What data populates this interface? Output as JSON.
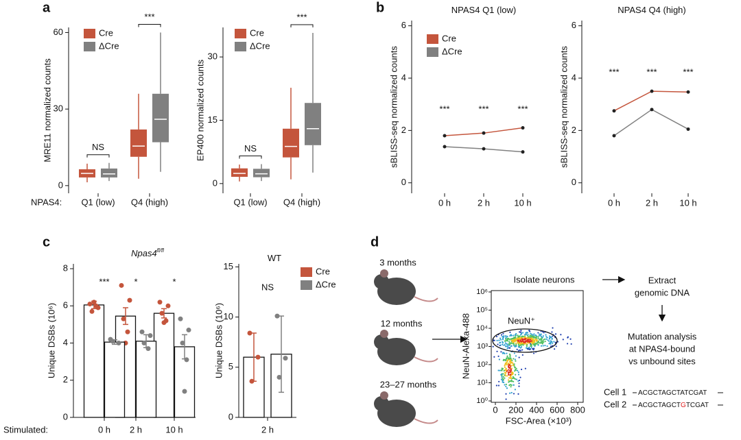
{
  "chart_data": [
    {
      "panel": "a",
      "type": "box",
      "ylabel": "MRE11 normalized counts",
      "group_label": "NPAS4:",
      "categories": [
        "Q1 (low)",
        "Q4 (high)"
      ],
      "series": [
        {
          "name": "Cre",
          "color": "#c4553c",
          "boxes": [
            {
              "low": 1.3,
              "q1": 3.2,
              "median": 4.8,
              "q3": 6.4,
              "high": 8.6
            },
            {
              "low": 2.7,
              "q1": 11.3,
              "median": 15.5,
              "q3": 22,
              "high": 36
            }
          ]
        },
        {
          "name": "ΔCre",
          "color": "#808080",
          "boxes": [
            {
              "low": 1.8,
              "q1": 3.2,
              "median": 4.6,
              "q3": 6.7,
              "high": 8.9
            },
            {
              "low": 5.4,
              "q1": 17,
              "median": 26,
              "q3": 36,
              "high": 60
            }
          ]
        }
      ],
      "annotations": [
        "NS",
        "***"
      ],
      "ylim": [
        -3,
        62
      ],
      "yticks": [
        0,
        30,
        60
      ]
    },
    {
      "type": "box",
      "ylabel": "EP400 normalized counts",
      "categories": [
        "Q1 (low)",
        "Q4 (high)"
      ],
      "series": [
        {
          "name": "Cre",
          "color": "#c4553c",
          "boxes": [
            {
              "low": 0.5,
              "q1": 1.6,
              "median": 2.4,
              "q3": 3.6,
              "high": 4.5
            },
            {
              "low": 1,
              "q1": 6.2,
              "median": 8.8,
              "q3": 13,
              "high": 22.7
            }
          ]
        },
        {
          "name": "ΔCre",
          "color": "#808080",
          "boxes": [
            {
              "low": 0.6,
              "q1": 1.5,
              "median": 2.3,
              "q3": 3.5,
              "high": 4.6
            },
            {
              "low": 2.6,
              "q1": 9.1,
              "median": 13,
              "q3": 19.1,
              "high": 35.7
            }
          ]
        }
      ],
      "annotations": [
        "NS",
        "***"
      ],
      "ylim": [
        -2.3,
        37
      ],
      "yticks": [
        0,
        15,
        30
      ]
    },
    {
      "panel": "b",
      "type": "line",
      "title": "NPAS4 Q1 (low)",
      "ylabel": "sBLISS-seq normalized counts",
      "categories": [
        "0 h",
        "2 h",
        "10 h"
      ],
      "series": [
        {
          "name": "Cre",
          "color": "#c4553c",
          "values": [
            1.8,
            1.9,
            2.1
          ]
        },
        {
          "name": "ΔCre",
          "color": "#808080",
          "values": [
            1.38,
            1.3,
            1.18
          ]
        }
      ],
      "annotations": [
        "***",
        "***",
        "***"
      ],
      "ylim": [
        -0.4,
        6.2
      ],
      "yticks": [
        0,
        2,
        4,
        6
      ]
    },
    {
      "type": "line",
      "title": "NPAS4 Q4 (high)",
      "ylabel": "sBLISS-seq normalized counts",
      "categories": [
        "0 h",
        "2 h",
        "10 h"
      ],
      "series": [
        {
          "color": "#c4553c",
          "values": [
            2.75,
            3.5,
            3.47
          ]
        },
        {
          "color": "#808080",
          "values": [
            1.8,
            2.8,
            2.05
          ]
        }
      ],
      "annotations": [
        "***",
        "***",
        "***"
      ],
      "ylim": [
        -0.4,
        6.2
      ],
      "yticks": [
        0,
        2,
        4,
        6
      ]
    },
    {
      "panel": "c",
      "type": "bar",
      "title": "Npas4",
      "title_sup": "fl/fl",
      "ylabel": "Unique DSBs (10⁶)",
      "group_label": "Stimulated:",
      "categories": [
        "0 h",
        "2 h",
        "10 h"
      ],
      "series": [
        {
          "color": "#c4553c",
          "values": [
            6.05,
            5.45,
            5.6
          ],
          "errors": [
            0.2,
            0.45,
            0.25
          ],
          "points": [
            [
              6.1,
              5.9,
              5.7,
              6.0,
              6.2
            ],
            [
              7.1,
              6.3,
              5.3,
              4.6,
              4.0
            ],
            [
              6.2,
              6.0,
              5.6,
              5.2,
              5.1
            ]
          ]
        },
        {
          "color": "#808080",
          "values": [
            4.05,
            4.1,
            3.8
          ],
          "errors": [
            0.12,
            0.35,
            0.65
          ],
          "points": [
            [
              4.2,
              4.0,
              4.1
            ],
            [
              4.6,
              4.4,
              4.0,
              3.7
            ],
            [
              5.3,
              4.7,
              4.0,
              3.1,
              1.4
            ]
          ]
        }
      ],
      "annotations": [
        "***",
        "*",
        "*"
      ],
      "ylim": [
        0,
        8.26
      ],
      "yticks": [
        0,
        2,
        4,
        6,
        8
      ]
    },
    {
      "type": "bar",
      "title": "WT",
      "ylabel": "Unique DSBs (10⁶)",
      "categories": [
        "2 h"
      ],
      "series": [
        {
          "name": "Cre",
          "color": "#c4553c",
          "values": [
            6.0
          ],
          "errors": [
            2.4
          ],
          "points": [
            [
              8.4,
              6.0,
              3.6
            ]
          ]
        },
        {
          "name": "ΔCre",
          "color": "#808080",
          "values": [
            6.3
          ],
          "errors": [
            3.8
          ],
          "points": [
            [
              10.1,
              5.9,
              4.0
            ]
          ]
        }
      ],
      "annotations": [
        "NS"
      ],
      "ylim": [
        0,
        15.3
      ],
      "yticks": [
        0,
        5,
        10,
        15
      ]
    }
  ],
  "diagram": {
    "panel": "d",
    "ages": [
      "3 months",
      "12 months",
      "23–27 months"
    ],
    "plot_title": "Isolate neurons",
    "gate_label": "NeuN⁺",
    "ylabel": "NeuN-Alexa-488",
    "xlabel": "FSC-Area (×10³)",
    "yticks": [
      "10⁰",
      "10¹",
      "10²",
      "10³",
      "10⁴",
      "10⁵",
      "10⁶"
    ],
    "xticks": [
      "0",
      "200",
      "400",
      "600",
      "800"
    ],
    "step1": [
      "Extract",
      "genomic DNA"
    ],
    "step2": [
      "Mutation analysis",
      "at NPAS4-bound",
      "vs unbound sites"
    ],
    "cells": [
      {
        "name": "Cell 1",
        "seq": [
          "ACGCTAGCTATCGAT"
        ]
      },
      {
        "name": "Cell 2",
        "seq": [
          "ACGCTAGCT",
          "G",
          "TCGAT"
        ]
      }
    ]
  }
}
